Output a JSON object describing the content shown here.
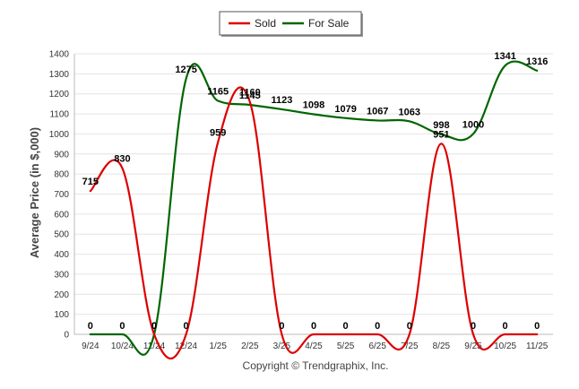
{
  "chart_data": {
    "type": "line",
    "title": "",
    "xlabel": "",
    "ylabel": "Average Price (in $,000)",
    "categories": [
      "9/24",
      "10/24",
      "11/24",
      "12/24",
      "1/25",
      "2/25",
      "3/25",
      "4/25",
      "5/25",
      "6/25",
      "7/25",
      "8/25",
      "9/25",
      "10/25",
      "11/25"
    ],
    "yticks": [
      0,
      100,
      200,
      300,
      400,
      500,
      600,
      700,
      800,
      900,
      1000,
      1100,
      1200,
      1300,
      1400
    ],
    "ylim": [
      0,
      1400
    ],
    "grid": true,
    "legend_position": "top-center",
    "series": [
      {
        "name": "Sold",
        "color": "#dd0000",
        "values": [
          715,
          830,
          0,
          0,
          959,
          1160,
          0,
          0,
          0,
          0,
          0,
          951,
          0,
          0,
          0
        ],
        "labels": [
          "715",
          "830",
          "0",
          "0",
          "959",
          "1160",
          "0",
          "0",
          "0",
          "0",
          "0",
          "951",
          "0",
          "0",
          "0"
        ]
      },
      {
        "name": "For Sale",
        "color": "#006600",
        "values": [
          0,
          0,
          0,
          1275,
          1165,
          1145,
          1123,
          1098,
          1079,
          1067,
          1063,
          998,
          1000,
          1341,
          1316
        ],
        "labels": [
          "0",
          "0",
          "0",
          "1275",
          "1165",
          "1145",
          "1123",
          "1098",
          "1079",
          "1067",
          "1063",
          "998",
          "1000",
          "1341",
          "1316"
        ]
      }
    ]
  },
  "footer": {
    "copyright": "Copyright © Trendgraphix, Inc."
  }
}
